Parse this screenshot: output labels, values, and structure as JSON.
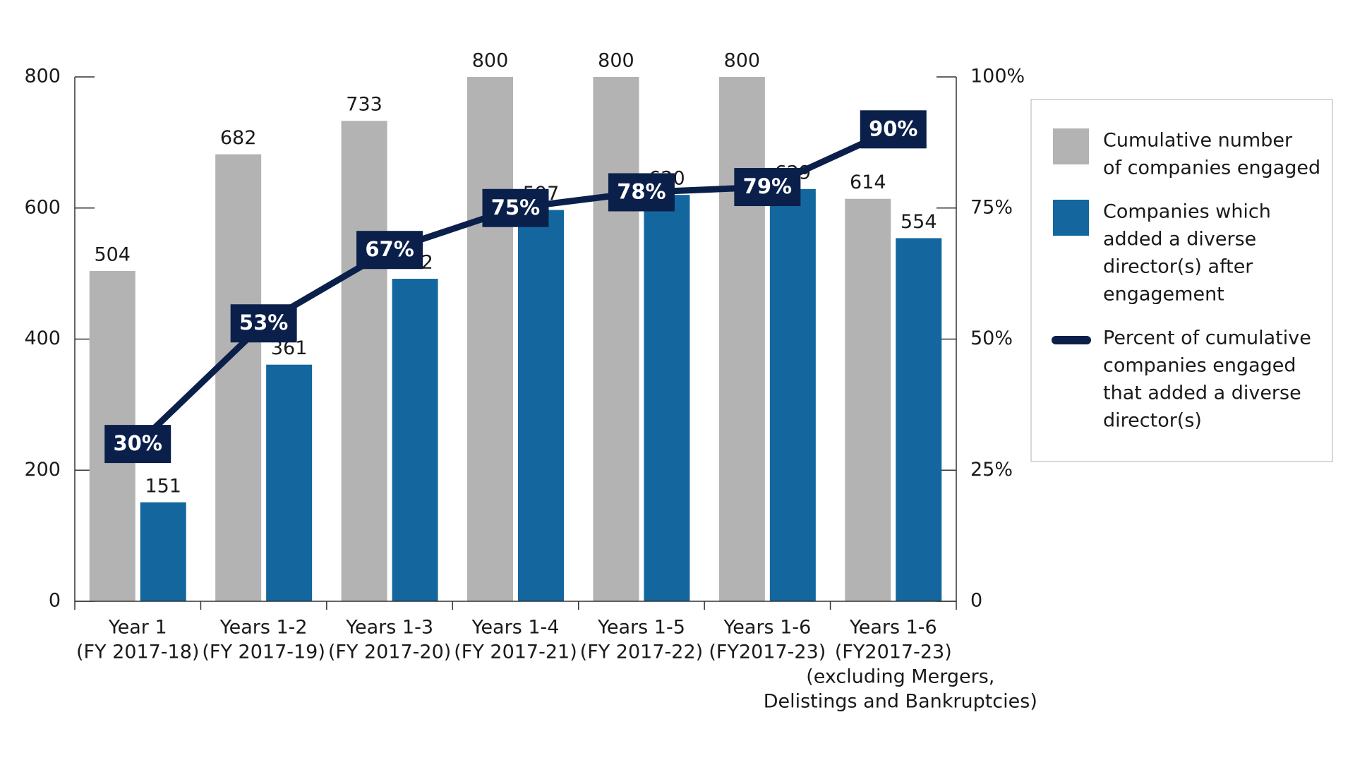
{
  "chart_data": {
    "type": "bar",
    "categories": [
      [
        "Year 1",
        "(FY 2017-18)"
      ],
      [
        "Years 1-2",
        "(FY 2017-19)"
      ],
      [
        "Years 1-3",
        "(FY 2017-20)"
      ],
      [
        "Years 1-4",
        "(FY 2017-21)"
      ],
      [
        "Years 1-5",
        "(FY 2017-22)"
      ],
      [
        "Years 1-6",
        "(FY2017-23)"
      ],
      [
        "Years 1-6",
        "(FY2017-23)",
        "(excluding Mergers,",
        "Delistings and Bankruptcies)"
      ]
    ],
    "series": [
      {
        "name": [
          "Cumulative number",
          "of companies engaged"
        ],
        "type": "bar",
        "color": "#b3b3b3",
        "values": [
          504,
          682,
          733,
          800,
          800,
          800,
          614
        ]
      },
      {
        "name": [
          "Companies which",
          "added a diverse",
          "director(s) after",
          "engagement"
        ],
        "type": "bar",
        "color": "#13679e",
        "values": [
          151,
          361,
          492,
          597,
          620,
          629,
          554
        ]
      },
      {
        "name": [
          "Percent of cumulative",
          "companies engaged",
          "that added a diverse",
          "director(s)"
        ],
        "type": "line",
        "axis": "y2",
        "color": "#0b1f4b",
        "values": [
          30,
          53,
          67,
          75,
          78,
          79,
          90
        ],
        "value_labels": [
          "30%",
          "53%",
          "67%",
          "75%",
          "78%",
          "79%",
          "90%"
        ]
      }
    ],
    "ylim": [
      0,
      800
    ],
    "yticks": [
      0,
      200,
      400,
      600,
      800
    ],
    "y2lim": [
      0,
      100
    ],
    "y2ticks": [
      {
        "value": 0,
        "label": "0"
      },
      {
        "value": 25,
        "label": "25%"
      },
      {
        "value": 50,
        "label": "50%"
      },
      {
        "value": 75,
        "label": "75%"
      },
      {
        "value": 100,
        "label": "100%"
      }
    ],
    "legend": "right"
  }
}
